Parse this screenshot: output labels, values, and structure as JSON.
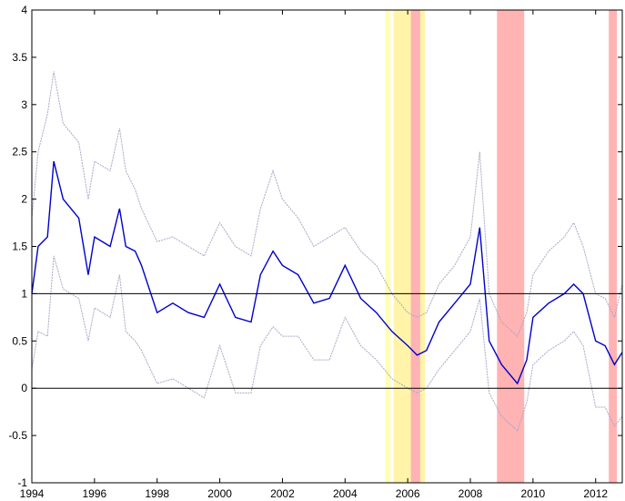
{
  "chart_data": {
    "type": "line",
    "title": "",
    "xlabel": "",
    "ylabel": "",
    "xlim": [
      1994.0,
      2012.85
    ],
    "ylim": [
      -1,
      4
    ],
    "x_ticks": [
      1994,
      1996,
      1998,
      2000,
      2002,
      2004,
      2006,
      2008,
      2010,
      2012
    ],
    "x_tick_labels": [
      "1994",
      "1996",
      "1998",
      "2000",
      "2002",
      "2004",
      "2006",
      "2008",
      "2010",
      "2012"
    ],
    "y_ticks": [
      -1,
      -0.5,
      0,
      0.5,
      1,
      1.5,
      2,
      2.5,
      3,
      3.5,
      4
    ],
    "y_tick_labels": [
      "-1",
      "-0.5",
      "0",
      "0.5",
      "1",
      "1.5",
      "2",
      "2.5",
      "3",
      "3.5",
      "4"
    ],
    "reference_lines": [
      1,
      0
    ],
    "grid": false,
    "legend": "none",
    "shaded_regions": [
      {
        "start": 2005.28,
        "end": 2005.45,
        "color": "#ffffb3"
      },
      {
        "start": 2005.55,
        "end": 2006.1,
        "color": "#fff4a8"
      },
      {
        "start": 2006.1,
        "end": 2006.4,
        "color": "#ffb3b3"
      },
      {
        "start": 2006.4,
        "end": 2006.55,
        "color": "#fff4a8"
      },
      {
        "start": 2008.85,
        "end": 2009.72,
        "color": "#ffb3b3"
      },
      {
        "start": 2012.42,
        "end": 2012.68,
        "color": "#ffb3b3"
      }
    ],
    "colors": {
      "central": "#0000cc",
      "bands": "#a8a8c8",
      "axis": "#000000"
    },
    "x": [
      1994.0,
      1994.2,
      1994.5,
      1994.7,
      1995.0,
      1995.5,
      1995.8,
      1996.0,
      1996.5,
      1996.8,
      1997.0,
      1997.3,
      1997.5,
      1998.0,
      1998.5,
      1999.0,
      1999.5,
      2000.0,
      2000.5,
      2001.0,
      2001.3,
      2001.7,
      2002.0,
      2002.5,
      2003.0,
      2003.5,
      2004.0,
      2004.5,
      2005.0,
      2005.5,
      2006.0,
      2006.3,
      2006.6,
      2007.0,
      2007.5,
      2008.0,
      2008.3,
      2008.6,
      2009.0,
      2009.5,
      2009.8,
      2010.0,
      2010.5,
      2011.0,
      2011.3,
      2011.6,
      2012.0,
      2012.3,
      2012.6,
      2012.85
    ],
    "series": [
      {
        "role": "central",
        "values": [
          1.0,
          1.5,
          1.6,
          2.4,
          2.0,
          1.8,
          1.2,
          1.6,
          1.5,
          1.9,
          1.5,
          1.45,
          1.3,
          0.8,
          0.9,
          0.8,
          0.75,
          1.1,
          0.75,
          0.7,
          1.2,
          1.45,
          1.3,
          1.2,
          0.9,
          0.95,
          1.3,
          0.95,
          0.8,
          0.6,
          0.45,
          0.35,
          0.4,
          0.7,
          0.9,
          1.1,
          1.7,
          0.5,
          0.25,
          0.05,
          0.3,
          0.75,
          0.9,
          1.0,
          1.1,
          1.0,
          0.5,
          0.45,
          0.25,
          0.38
        ]
      },
      {
        "role": "upper",
        "values": [
          1.8,
          2.5,
          2.9,
          3.35,
          2.8,
          2.6,
          2.0,
          2.4,
          2.3,
          2.75,
          2.3,
          2.1,
          1.9,
          1.55,
          1.6,
          1.5,
          1.4,
          1.75,
          1.5,
          1.4,
          1.9,
          2.3,
          2.0,
          1.8,
          1.5,
          1.6,
          1.7,
          1.45,
          1.3,
          1.0,
          0.8,
          0.75,
          0.8,
          1.1,
          1.3,
          1.6,
          2.5,
          1.0,
          0.7,
          0.55,
          0.8,
          1.2,
          1.45,
          1.6,
          1.75,
          1.5,
          1.0,
          0.95,
          0.75,
          1.1
        ]
      },
      {
        "role": "lower",
        "values": [
          0.2,
          0.6,
          0.55,
          1.4,
          1.05,
          0.95,
          0.5,
          0.85,
          0.75,
          1.2,
          0.6,
          0.5,
          0.4,
          0.05,
          0.1,
          0.0,
          -0.1,
          0.45,
          -0.05,
          -0.05,
          0.45,
          0.65,
          0.55,
          0.55,
          0.3,
          0.3,
          0.75,
          0.45,
          0.3,
          0.1,
          0.0,
          -0.05,
          0.0,
          0.2,
          0.4,
          0.6,
          0.95,
          -0.05,
          -0.3,
          -0.45,
          -0.15,
          0.25,
          0.4,
          0.5,
          0.6,
          0.45,
          -0.2,
          -0.2,
          -0.4,
          -0.3
        ]
      }
    ]
  }
}
